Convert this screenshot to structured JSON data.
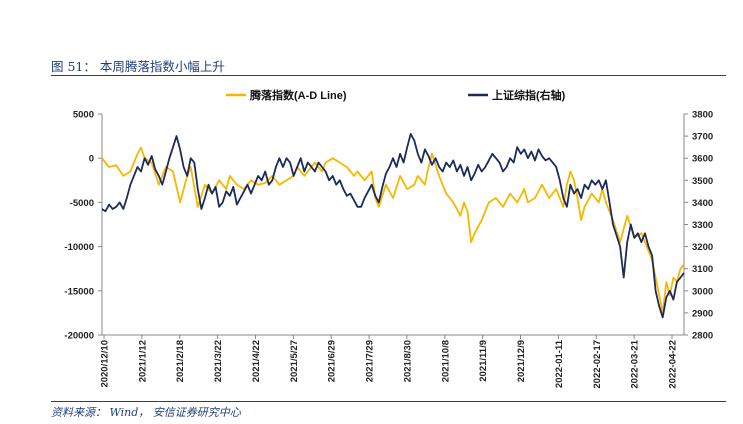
{
  "figure": {
    "title": "图 51： 本周腾落指数小幅上升",
    "source": "资料来源： Wind， 安信证券研究中心"
  },
  "chart_data": {
    "type": "line",
    "x_tick_labels": [
      "2020/12/10",
      "2021/1/12",
      "2021/2/18",
      "2021/3/22",
      "2021/4/22",
      "2021/5/27",
      "2021/6/29",
      "2021/7/29",
      "2021/8/30",
      "2021/10/8",
      "2021/11/9",
      "2021/12/9",
      "2022-01-11",
      "2022-02-17",
      "2022-03-21",
      "2022-04-22"
    ],
    "left_axis": {
      "ylim": [
        -20000,
        5000
      ],
      "ticks": [
        5000,
        0,
        -5000,
        -10000,
        -15000,
        -20000
      ]
    },
    "right_axis": {
      "ylim": [
        2800,
        3800
      ],
      "ticks": [
        3800,
        3700,
        3600,
        3500,
        3400,
        3300,
        3200,
        3100,
        3000,
        2900,
        2800
      ]
    },
    "grid": false,
    "legend_position": "top",
    "series": [
      {
        "name": "腾落指数(A-D Line)",
        "axis": "left",
        "color": "#f5b800",
        "points": [
          [
            0,
            0
          ],
          [
            2,
            -1000
          ],
          [
            4,
            -800
          ],
          [
            6,
            -2000
          ],
          [
            8,
            -1500
          ],
          [
            10,
            500
          ],
          [
            11,
            1200
          ],
          [
            12,
            0
          ],
          [
            14,
            -500
          ],
          [
            16,
            -3000
          ],
          [
            18,
            -1000
          ],
          [
            20,
            -1500
          ],
          [
            22,
            -5000
          ],
          [
            24,
            -2000
          ],
          [
            25,
            -1000
          ],
          [
            27,
            -5500
          ],
          [
            29,
            -3000
          ],
          [
            31,
            -4000
          ],
          [
            33,
            -2500
          ],
          [
            35,
            -3500
          ],
          [
            36,
            -2000
          ],
          [
            38,
            -3000
          ],
          [
            40,
            -3500
          ],
          [
            42,
            -2500
          ],
          [
            44,
            -3000
          ],
          [
            46,
            -2800
          ],
          [
            48,
            -2000
          ],
          [
            50,
            -3000
          ],
          [
            52,
            -2500
          ],
          [
            54,
            -2000
          ],
          [
            55,
            -1000
          ],
          [
            57,
            -2000
          ],
          [
            58,
            -1500
          ],
          [
            60,
            -500
          ],
          [
            62,
            -1500
          ],
          [
            63,
            -500
          ],
          [
            65,
            0
          ],
          [
            67,
            -500
          ],
          [
            69,
            -1000
          ],
          [
            71,
            -2000
          ],
          [
            72,
            -1500
          ],
          [
            74,
            -2500
          ],
          [
            76,
            -1500
          ],
          [
            77,
            -4500
          ],
          [
            78,
            -5500
          ],
          [
            80,
            -3000
          ],
          [
            82,
            -4500
          ],
          [
            84,
            -2000
          ],
          [
            86,
            -3500
          ],
          [
            88,
            -3000
          ],
          [
            89,
            -2000
          ],
          [
            91,
            -3000
          ],
          [
            92,
            -1000
          ],
          [
            93,
            500
          ],
          [
            95,
            -2000
          ],
          [
            97,
            -4000
          ],
          [
            99,
            -5000
          ],
          [
            101,
            -6500
          ],
          [
            102,
            -5000
          ],
          [
            103,
            -6000
          ],
          [
            104,
            -9500
          ],
          [
            105,
            -8500
          ],
          [
            107,
            -7000
          ],
          [
            109,
            -5000
          ],
          [
            111,
            -4500
          ],
          [
            113,
            -5500
          ],
          [
            115,
            -4000
          ],
          [
            117,
            -5000
          ],
          [
            119,
            -3500
          ],
          [
            120,
            -5000
          ],
          [
            122,
            -4500
          ],
          [
            124,
            -3000
          ],
          [
            126,
            -4500
          ],
          [
            128,
            -3500
          ],
          [
            130,
            -5500
          ],
          [
            131,
            -3000
          ],
          [
            132,
            -1500
          ],
          [
            133,
            -2500
          ],
          [
            134,
            -4500
          ],
          [
            135,
            -7000
          ],
          [
            136,
            -5500
          ],
          [
            138,
            -4000
          ],
          [
            140,
            -5000
          ],
          [
            141,
            -3500
          ],
          [
            142,
            -5000
          ],
          [
            144,
            -7000
          ],
          [
            146,
            -9500
          ],
          [
            147,
            -8000
          ],
          [
            148,
            -6500
          ],
          [
            150,
            -9000
          ],
          [
            152,
            -8500
          ],
          [
            154,
            -10500
          ],
          [
            155,
            -11500
          ],
          [
            156,
            -13500
          ],
          [
            157,
            -15500
          ],
          [
            158,
            -17500
          ],
          [
            159,
            -14000
          ],
          [
            160,
            -15500
          ],
          [
            161,
            -13500
          ],
          [
            162,
            -14000
          ],
          [
            163,
            -12500
          ],
          [
            164,
            -12000
          ]
        ]
      },
      {
        "name": "上证综指(右轴)",
        "axis": "right",
        "color": "#1b2a5a",
        "points": [
          [
            0,
            3370
          ],
          [
            1,
            3360
          ],
          [
            2,
            3390
          ],
          [
            3,
            3370
          ],
          [
            4,
            3380
          ],
          [
            5,
            3400
          ],
          [
            6,
            3370
          ],
          [
            7,
            3420
          ],
          [
            8,
            3480
          ],
          [
            9,
            3520
          ],
          [
            10,
            3560
          ],
          [
            11,
            3540
          ],
          [
            12,
            3600
          ],
          [
            13,
            3570
          ],
          [
            14,
            3610
          ],
          [
            15,
            3550
          ],
          [
            16,
            3520
          ],
          [
            17,
            3480
          ],
          [
            18,
            3540
          ],
          [
            19,
            3600
          ],
          [
            20,
            3650
          ],
          [
            21,
            3700
          ],
          [
            22,
            3640
          ],
          [
            23,
            3560
          ],
          [
            24,
            3520
          ],
          [
            25,
            3600
          ],
          [
            26,
            3580
          ],
          [
            27,
            3460
          ],
          [
            28,
            3370
          ],
          [
            29,
            3420
          ],
          [
            30,
            3480
          ],
          [
            31,
            3440
          ],
          [
            32,
            3470
          ],
          [
            33,
            3380
          ],
          [
            34,
            3400
          ],
          [
            35,
            3450
          ],
          [
            36,
            3430
          ],
          [
            37,
            3470
          ],
          [
            38,
            3390
          ],
          [
            39,
            3420
          ],
          [
            40,
            3450
          ],
          [
            41,
            3480
          ],
          [
            42,
            3440
          ],
          [
            43,
            3480
          ],
          [
            44,
            3520
          ],
          [
            45,
            3500
          ],
          [
            46,
            3540
          ],
          [
            47,
            3480
          ],
          [
            48,
            3500
          ],
          [
            49,
            3560
          ],
          [
            50,
            3600
          ],
          [
            51,
            3560
          ],
          [
            52,
            3600
          ],
          [
            53,
            3580
          ],
          [
            54,
            3520
          ],
          [
            55,
            3560
          ],
          [
            56,
            3600
          ],
          [
            57,
            3540
          ],
          [
            58,
            3580
          ],
          [
            59,
            3560
          ],
          [
            60,
            3540
          ],
          [
            61,
            3580
          ],
          [
            62,
            3560
          ],
          [
            63,
            3540
          ],
          [
            64,
            3500
          ],
          [
            65,
            3520
          ],
          [
            66,
            3480
          ],
          [
            67,
            3500
          ],
          [
            68,
            3460
          ],
          [
            69,
            3430
          ],
          [
            70,
            3440
          ],
          [
            71,
            3410
          ],
          [
            72,
            3380
          ],
          [
            73,
            3380
          ],
          [
            74,
            3420
          ],
          [
            75,
            3450
          ],
          [
            76,
            3480
          ],
          [
            77,
            3430
          ],
          [
            78,
            3400
          ],
          [
            79,
            3470
          ],
          [
            80,
            3530
          ],
          [
            81,
            3560
          ],
          [
            82,
            3600
          ],
          [
            83,
            3560
          ],
          [
            84,
            3620
          ],
          [
            85,
            3580
          ],
          [
            86,
            3650
          ],
          [
            87,
            3710
          ],
          [
            88,
            3680
          ],
          [
            89,
            3620
          ],
          [
            90,
            3580
          ],
          [
            91,
            3640
          ],
          [
            92,
            3610
          ],
          [
            93,
            3570
          ],
          [
            94,
            3600
          ],
          [
            95,
            3560
          ],
          [
            96,
            3540
          ],
          [
            97,
            3580
          ],
          [
            98,
            3560
          ],
          [
            99,
            3590
          ],
          [
            100,
            3540
          ],
          [
            101,
            3570
          ],
          [
            102,
            3520
          ],
          [
            103,
            3560
          ],
          [
            104,
            3500
          ],
          [
            105,
            3530
          ],
          [
            106,
            3570
          ],
          [
            107,
            3540
          ],
          [
            108,
            3560
          ],
          [
            109,
            3590
          ],
          [
            110,
            3620
          ],
          [
            111,
            3600
          ],
          [
            112,
            3580
          ],
          [
            113,
            3540
          ],
          [
            114,
            3560
          ],
          [
            115,
            3600
          ],
          [
            116,
            3580
          ],
          [
            117,
            3650
          ],
          [
            118,
            3620
          ],
          [
            119,
            3640
          ],
          [
            120,
            3600
          ],
          [
            121,
            3630
          ],
          [
            122,
            3590
          ],
          [
            123,
            3640
          ],
          [
            124,
            3610
          ],
          [
            125,
            3590
          ],
          [
            126,
            3600
          ],
          [
            127,
            3580
          ],
          [
            128,
            3560
          ],
          [
            129,
            3500
          ],
          [
            130,
            3420
          ],
          [
            131,
            3380
          ],
          [
            132,
            3480
          ],
          [
            133,
            3440
          ],
          [
            134,
            3460
          ],
          [
            135,
            3420
          ],
          [
            136,
            3480
          ],
          [
            137,
            3460
          ],
          [
            138,
            3500
          ],
          [
            139,
            3480
          ],
          [
            140,
            3500
          ],
          [
            141,
            3460
          ],
          [
            142,
            3500
          ],
          [
            143,
            3400
          ],
          [
            144,
            3300
          ],
          [
            145,
            3250
          ],
          [
            146,
            3200
          ],
          [
            147,
            3060
          ],
          [
            148,
            3220
          ],
          [
            149,
            3300
          ],
          [
            150,
            3240
          ],
          [
            151,
            3260
          ],
          [
            152,
            3220
          ],
          [
            153,
            3260
          ],
          [
            154,
            3200
          ],
          [
            155,
            3160
          ],
          [
            156,
            3000
          ],
          [
            157,
            2930
          ],
          [
            158,
            2880
          ],
          [
            159,
            2970
          ],
          [
            160,
            3000
          ],
          [
            161,
            2960
          ],
          [
            162,
            3040
          ],
          [
            163,
            3060
          ],
          [
            164,
            3080
          ]
        ]
      }
    ]
  }
}
